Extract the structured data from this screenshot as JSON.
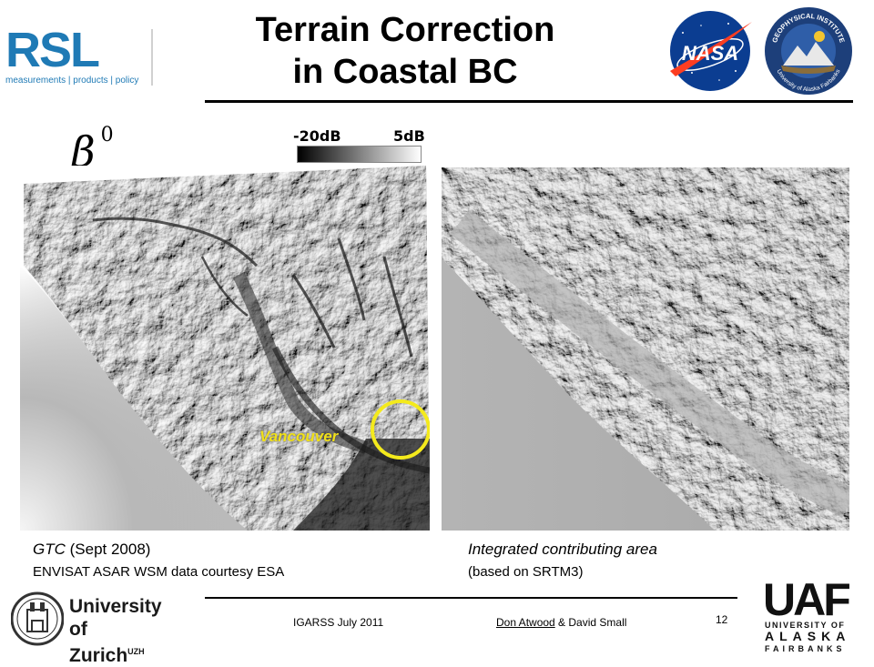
{
  "header": {
    "title_line1": "Terrain Correction",
    "title_line2": "in Coastal BC"
  },
  "logos": {
    "rsl": {
      "letters": "RSL",
      "tagline": "measurements | products | policy",
      "color": "#1f7ab5"
    },
    "nasa": {
      "name": "NASA",
      "blue": "#0b3d91",
      "red": "#fc3d21"
    },
    "gi": {
      "top_text": "GEOPHYSICAL INSTITUTE",
      "bottom_text": "University of Alaska Fairbanks"
    },
    "uzh": {
      "line1": "University of",
      "line2": "Zurich",
      "suffix": "UZH"
    },
    "uaf": {
      "letters": "UAF",
      "line1": "UNIVERSITY OF",
      "line2": "ALASKA",
      "line3": "FAIRBANKS"
    }
  },
  "figure": {
    "beta_symbol": "β",
    "beta_superscript": "0",
    "colorbar": {
      "min_label": "-20dB",
      "max_label": "5dB"
    },
    "annotation": {
      "label": "Vancouver",
      "circle_color": "#f4ea1c"
    }
  },
  "captions": {
    "left_italic": "GTC",
    "left_rest": " (Sept 2008)",
    "left_line2": "ENVISAT ASAR WSM data courtesy ESA",
    "right_line1": "Integrated contributing area",
    "right_line2": "(based on SRTM3)"
  },
  "footer": {
    "conference": "IGARSS July 2011",
    "author1": "Don Atwood",
    "author_rest": " & David Small",
    "page": "12"
  }
}
